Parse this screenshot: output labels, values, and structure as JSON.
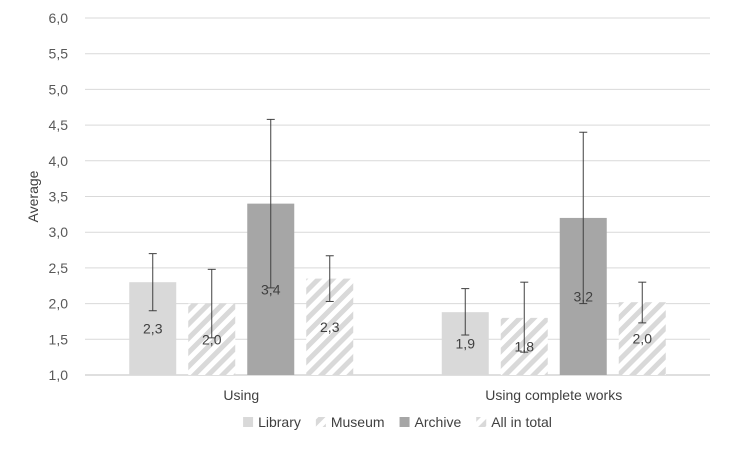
{
  "chart_data": {
    "type": "bar",
    "title": "",
    "xlabel": "",
    "ylabel": "Average",
    "ylim": [
      1.0,
      6.0
    ],
    "ytick_step": 0.5,
    "grid": true,
    "legend_position": "bottom",
    "categories": [
      "Using",
      "Using complete works"
    ],
    "series": [
      {
        "name": "Library",
        "fill": "solid",
        "color": "#d9d9d9",
        "values": [
          2.3,
          1.88
        ],
        "labels": [
          "2,3",
          "1,9"
        ],
        "err_low": [
          1.9,
          1.56
        ],
        "err_high": [
          2.7,
          2.21
        ]
      },
      {
        "name": "Museum",
        "fill": "hatch",
        "color": "#d9d9d9",
        "values": [
          2.0,
          1.8
        ],
        "labels": [
          "2,0",
          "1,8"
        ],
        "err_low": [
          1.52,
          1.32
        ],
        "err_high": [
          2.48,
          2.3
        ]
      },
      {
        "name": "Archive",
        "fill": "solid",
        "color": "#a6a6a6",
        "values": [
          3.4,
          3.2
        ],
        "labels": [
          "3,4",
          "3,2"
        ],
        "err_low": [
          2.22,
          2.0
        ],
        "err_high": [
          4.58,
          4.4
        ]
      },
      {
        "name": "All in total",
        "fill": "hatch",
        "color": "#d9d9d9",
        "values": [
          2.35,
          2.02
        ],
        "labels": [
          "2,3",
          "2,0"
        ],
        "err_low": [
          2.03,
          1.73
        ],
        "err_high": [
          2.67,
          2.3
        ]
      }
    ]
  }
}
